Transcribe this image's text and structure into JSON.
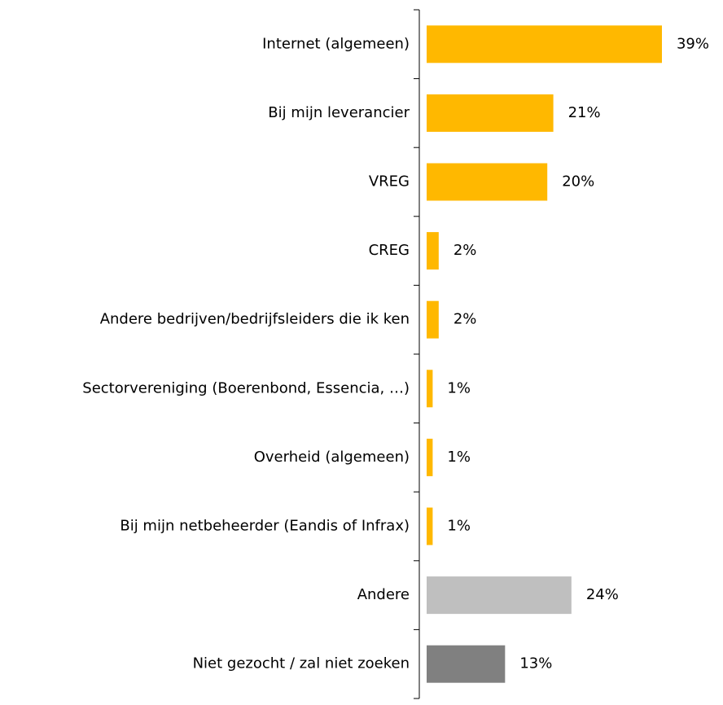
{
  "chart_data": {
    "type": "barh",
    "categories": [
      "Internet (algemeen)",
      "Bij mijn leverancier",
      "VREG",
      "CREG",
      "Andere bedrijven/bedrijfsleiders die ik ken",
      "Sectorvereniging (Boerenbond, Essencia, …)",
      "Overheid (algemeen)",
      "Bij mijn netbeheerder (Eandis of Infrax)",
      "Andere",
      "Niet gezocht / zal niet zoeken"
    ],
    "values": [
      39,
      21,
      20,
      2,
      2,
      1,
      1,
      1,
      24,
      13
    ],
    "value_labels": [
      "39%",
      "21%",
      "20%",
      "2%",
      "2%",
      "1%",
      "1%",
      "1%",
      "24%",
      "13%"
    ],
    "colors": [
      "#FFB800",
      "#FFB800",
      "#FFB800",
      "#FFB800",
      "#FFB800",
      "#FFB800",
      "#FFB800",
      "#FFB800",
      "#BFBFBF",
      "#808080"
    ]
  }
}
